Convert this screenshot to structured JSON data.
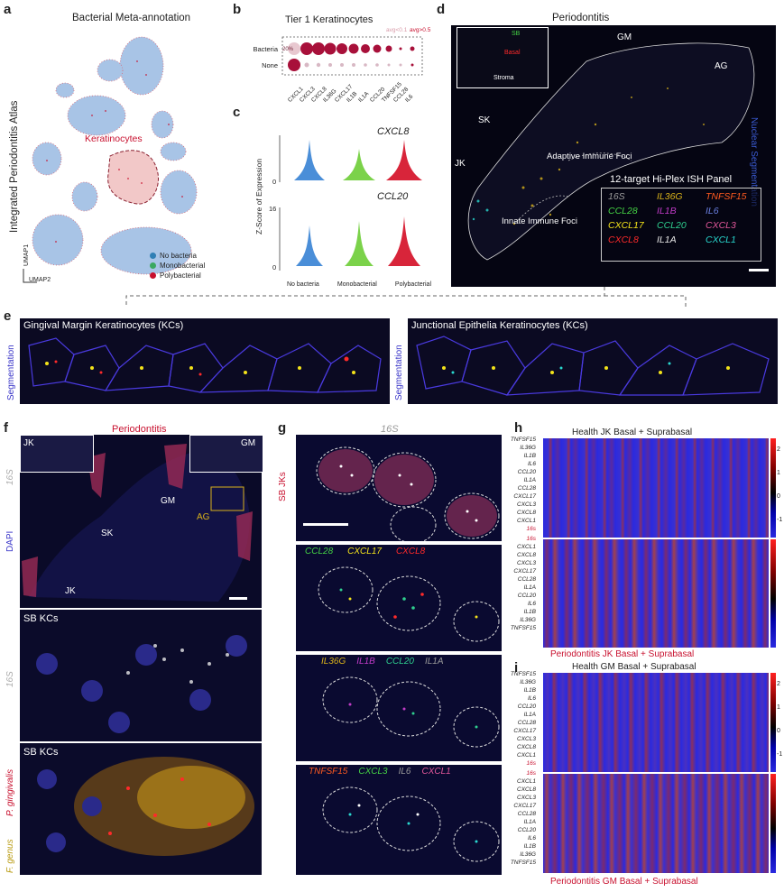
{
  "panels": {
    "a": {
      "letter": "a",
      "title": "Bacterial Meta-annotation",
      "ylabel": "Integrated Periodontitis Atlas",
      "cluster_label": "Keratinocytes",
      "umap1": "UMAP1",
      "umap2": "UMAP2",
      "legend": [
        {
          "label": "No bacteria",
          "color": "#2f7fb5"
        },
        {
          "label": "Monobacterial",
          "color": "#3aa860"
        },
        {
          "label": "Polybacterial",
          "color": "#c8102e"
        }
      ]
    },
    "b": {
      "letter": "b",
      "title": "Tier 1 Keratinocytes",
      "rows": [
        "Bacteria",
        "None"
      ],
      "genes": [
        "CXCL1",
        "CXCL3",
        "CXCL8",
        "IL36G",
        "CXCL17",
        "IL1B",
        "IL1A",
        "CCL20",
        "TNFSF15",
        "CCL28",
        "IL6"
      ],
      "pct_label": "20%",
      "size_legend": "avg<0.1",
      "size_legend2": "avg>0.5"
    },
    "c": {
      "letter": "c",
      "ylabel": "Z-Score of Expression",
      "gene1": "CXCL8",
      "gene2": "CCL20",
      "tick_top": "16",
      "tick_zero1": "0",
      "tick_zero2": "0",
      "groups": [
        "No bacteria",
        "Monobacterial",
        "Polybacterial"
      ]
    },
    "d": {
      "letter": "d",
      "title": "Periodontitis",
      "side_label": "Nuclear Segmentation",
      "regions": [
        "GM",
        "AG",
        "SK",
        "JK"
      ],
      "foci1": "Adaptive Immune Foci",
      "foci2": "Innate Immune Foci",
      "inset_sb": "SB",
      "inset_basal": "Basal",
      "inset_stroma": "Stroma",
      "panel_title": "12-target Hi-Plex ISH Panel",
      "targets": [
        {
          "name": "16S",
          "color": "#9a9a9a"
        },
        {
          "name": "IL36G",
          "color": "#d9b21a"
        },
        {
          "name": "TNFSF15",
          "color": "#ff5a1f"
        },
        {
          "name": "CCL28",
          "color": "#44d144"
        },
        {
          "name": "IL1B",
          "color": "#c23cc8"
        },
        {
          "name": "IL6",
          "color": "#6a7fe0"
        },
        {
          "name": "CXCL17",
          "color": "#f4e31a"
        },
        {
          "name": "CCL20",
          "color": "#2fcf8f"
        },
        {
          "name": "CXCL3",
          "color": "#e2579a"
        },
        {
          "name": "CXCL8",
          "color": "#ff2a2a"
        },
        {
          "name": "IL1A",
          "color": "#e8e8e8"
        },
        {
          "name": "CXCL1",
          "color": "#29d9d0"
        }
      ]
    },
    "e": {
      "letter": "e",
      "left_title": "Gingival Margin Keratinocytes (KCs)",
      "right_title": "Junctional Epithelia Keratinocytes (KCs)",
      "side_label": "Segmentation"
    },
    "f": {
      "letter": "f",
      "title": "Periodontitis",
      "inset_jk": "JK",
      "inset_gm": "GM",
      "side_16s": "16S",
      "side_dapi": "DAPI",
      "regions": [
        "GM",
        "AG",
        "SK",
        "JK"
      ],
      "sb_kcs_1": "SB KCs",
      "sb_kcs_2": "SB KCs",
      "side_16s_2": "16S",
      "side_pg": "P. gingivalis",
      "side_fg": "F. genus"
    },
    "g": {
      "letter": "g",
      "title": "16S",
      "side_label": "SB JKs",
      "row2": [
        "CCL28",
        "CXCL17",
        "CXCL8"
      ],
      "row3": [
        "IL36G",
        "IL1B",
        "CCL20",
        "IL1A"
      ],
      "row4": [
        "TNFSF15",
        "CXCL3",
        "IL6",
        "CXCL1"
      ]
    },
    "h": {
      "letter": "h",
      "top_title": "Health JK Basal + Suprabasal",
      "bottom_title": "Periodontitis JK Basal + Suprabasal",
      "genes_top": [
        "TNFSF15",
        "IL36G",
        "IL1B",
        "IL6",
        "CCL20",
        "IL1A",
        "CCL28",
        "CXCL17",
        "CXCL3",
        "CXCL8",
        "CXCL1",
        "16s"
      ],
      "genes_bottom": [
        "16s",
        "CXCL1",
        "CXCL8",
        "CXCL3",
        "CXCL17",
        "CCL28",
        "IL1A",
        "CCL20",
        "IL6",
        "IL1B",
        "IL36G",
        "TNFSF15"
      ],
      "scale_ticks": [
        "2",
        "1",
        "0",
        "-1"
      ]
    },
    "i": {
      "letter": "i",
      "top_title": "Health GM Basal + Suprabasal",
      "bottom_title": "Periodontitis GM Basal + Suprabasal",
      "genes_top": [
        "TNFSF15",
        "IL36G",
        "IL1B",
        "IL6",
        "CCL20",
        "IL1A",
        "CCL28",
        "CXCL17",
        "CXCL3",
        "CXCL8",
        "CXCL1",
        "16s"
      ],
      "genes_bottom": [
        "16s",
        "CXCL1",
        "CXCL8",
        "CXCL3",
        "CXCL17",
        "CCL28",
        "IL1A",
        "CCL20",
        "IL6",
        "IL1B",
        "IL36G",
        "TNFSF15"
      ],
      "scale_ticks": [
        "2",
        "1",
        "0",
        "-1"
      ]
    }
  }
}
